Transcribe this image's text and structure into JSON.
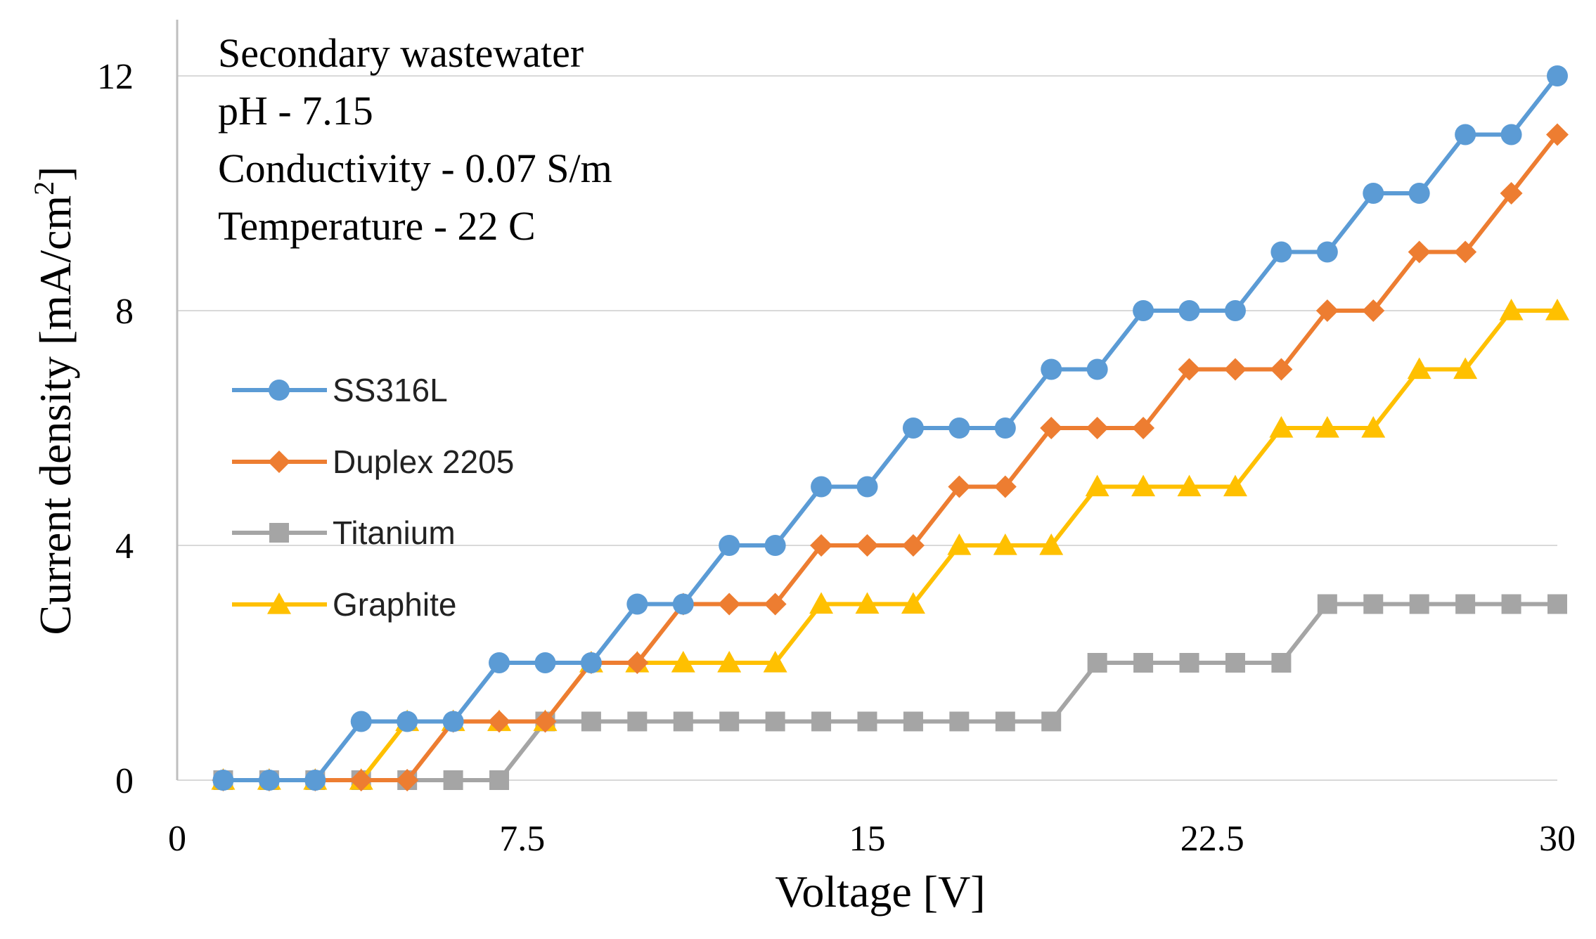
{
  "chart_data": {
    "type": "line",
    "xlabel": "Voltage [V]",
    "ylabel_text": "Current density [mA/cm",
    "ylabel_sup": "2",
    "ylabel_end": "]",
    "xlim": [
      0,
      30
    ],
    "ylim": [
      0,
      12.5
    ],
    "xticks": [
      "0",
      "7.5",
      "15",
      "22.5",
      "30"
    ],
    "xtick_values": [
      0,
      7.5,
      15,
      22.5,
      30
    ],
    "yticks": [
      "0",
      "4",
      "8",
      "12"
    ],
    "ytick_values": [
      0,
      4,
      8,
      12
    ],
    "grid": "horizontal",
    "legend_position": "middle-left",
    "annotation": [
      "Secondary wastewater",
      "pH - 7.15",
      "Conductivity - 0.07 S/m",
      "Temperature - 22 C"
    ],
    "x": [
      1,
      2,
      3,
      4,
      5,
      6,
      7,
      8,
      9,
      10,
      11,
      12,
      13,
      14,
      15,
      16,
      17,
      18,
      19,
      20,
      21,
      22,
      23,
      24,
      25,
      26,
      27,
      28,
      29,
      30
    ],
    "series": [
      {
        "name": "SS316L",
        "color": "#5b9bd5",
        "marker": "circle",
        "values": [
          0,
          0,
          0,
          1,
          1,
          1,
          2,
          2,
          2,
          3,
          3,
          4,
          4,
          5,
          5,
          6,
          6,
          6,
          7,
          7,
          8,
          8,
          8,
          9,
          9,
          10,
          10,
          11,
          11,
          12
        ]
      },
      {
        "name": "Duplex 2205",
        "color": "#ed7d31",
        "marker": "diamond",
        "values": [
          0,
          0,
          0,
          0,
          0,
          1,
          1,
          1,
          2,
          2,
          3,
          3,
          3,
          4,
          4,
          4,
          5,
          5,
          6,
          6,
          6,
          7,
          7,
          7,
          8,
          8,
          9,
          9,
          10,
          11
        ]
      },
      {
        "name": "Titanium",
        "color": "#a5a5a5",
        "marker": "square",
        "values": [
          0,
          0,
          0,
          0,
          0,
          0,
          0,
          1,
          1,
          1,
          1,
          1,
          1,
          1,
          1,
          1,
          1,
          1,
          1,
          2,
          2,
          2,
          2,
          2,
          3,
          3,
          3,
          3,
          3,
          3
        ]
      },
      {
        "name": "Graphite",
        "color": "#ffc000",
        "marker": "triangle",
        "values": [
          0,
          0,
          0,
          0,
          1,
          1,
          1,
          1,
          2,
          2,
          2,
          2,
          2,
          3,
          3,
          3,
          4,
          4,
          4,
          5,
          5,
          5,
          5,
          6,
          6,
          6,
          7,
          7,
          8,
          8
        ]
      }
    ]
  }
}
